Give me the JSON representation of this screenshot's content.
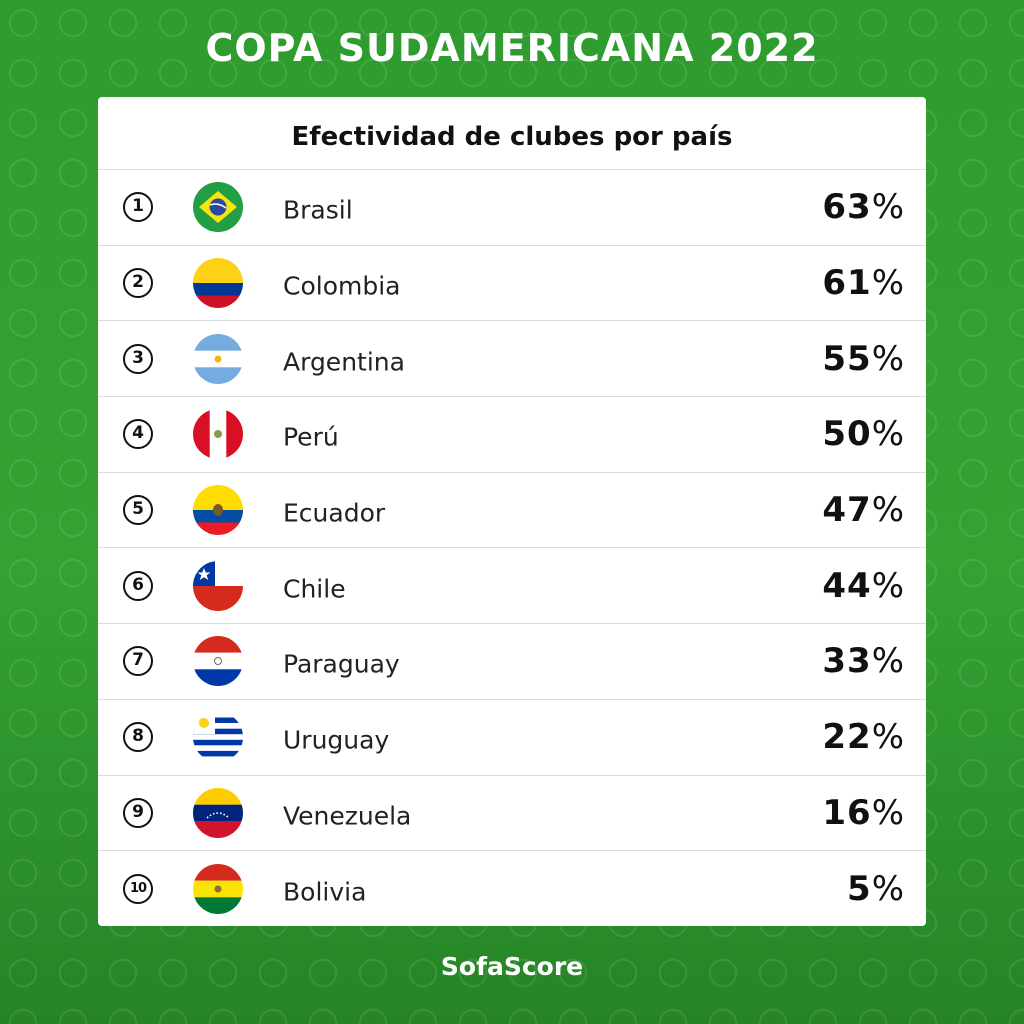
{
  "header": {
    "title": "COPA SUDAMERICANA 2022"
  },
  "card": {
    "title": "Efectividad de clubes por país"
  },
  "rows": [
    {
      "rank": "1",
      "country": "Brasil",
      "value": "63",
      "unit": "%",
      "flag_icon": "brazil-flag-icon"
    },
    {
      "rank": "2",
      "country": "Colombia",
      "value": "61",
      "unit": "%",
      "flag_icon": "colombia-flag-icon"
    },
    {
      "rank": "3",
      "country": "Argentina",
      "value": "55",
      "unit": "%",
      "flag_icon": "argentina-flag-icon"
    },
    {
      "rank": "4",
      "country": "Perú",
      "value": "50",
      "unit": "%",
      "flag_icon": "peru-flag-icon"
    },
    {
      "rank": "5",
      "country": "Ecuador",
      "value": "47",
      "unit": "%",
      "flag_icon": "ecuador-flag-icon"
    },
    {
      "rank": "6",
      "country": "Chile",
      "value": "44",
      "unit": "%",
      "flag_icon": "chile-flag-icon"
    },
    {
      "rank": "7",
      "country": "Paraguay",
      "value": "33",
      "unit": "%",
      "flag_icon": "paraguay-flag-icon"
    },
    {
      "rank": "8",
      "country": "Uruguay",
      "value": "22",
      "unit": "%",
      "flag_icon": "uruguay-flag-icon"
    },
    {
      "rank": "9",
      "country": "Venezuela",
      "value": "16",
      "unit": "%",
      "flag_icon": "venezuela-flag-icon"
    },
    {
      "rank": "10",
      "country": "Bolivia",
      "value": "5",
      "unit": "%",
      "flag_icon": "bolivia-flag-icon"
    }
  ],
  "footer": {
    "brand": "SofaScore"
  },
  "colors": {
    "background": "#33a233",
    "card": "#ffffff",
    "text": "#111111"
  }
}
